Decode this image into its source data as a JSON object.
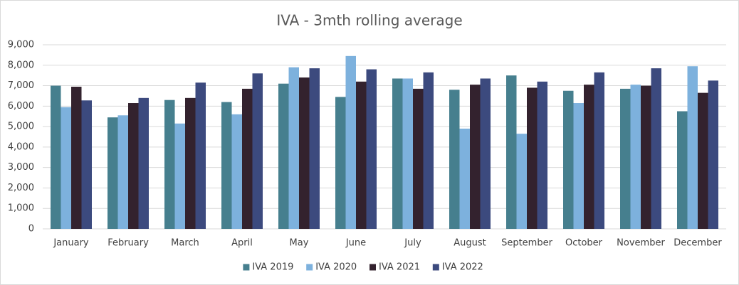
{
  "chart_data": {
    "type": "bar",
    "title": "IVA - 3mth rolling average",
    "categories": [
      "January",
      "February",
      "March",
      "April",
      "May",
      "June",
      "July",
      "August",
      "September",
      "October",
      "November",
      "December"
    ],
    "series": [
      {
        "name": "IVA 2019",
        "color": "#467f8e",
        "values": [
          7000,
          5450,
          6300,
          6200,
          7100,
          6450,
          7350,
          6800,
          7500,
          6750,
          6850,
          5750
        ]
      },
      {
        "name": "IVA 2020",
        "color": "#7db1dd",
        "values": [
          5950,
          5550,
          5150,
          5600,
          7900,
          8450,
          7350,
          4900,
          4650,
          6150,
          7050,
          7950
        ]
      },
      {
        "name": "IVA 2021",
        "color": "#33222e",
        "values": [
          6950,
          6150,
          6400,
          6850,
          7400,
          7200,
          6850,
          7050,
          6900,
          7050,
          7000,
          6650
        ]
      },
      {
        "name": "IVA 2022",
        "color": "#3c4a7e",
        "values": [
          6280,
          6400,
          7150,
          7600,
          7850,
          7800,
          7650,
          7350,
          7200,
          7650,
          7850,
          7250
        ]
      }
    ],
    "ylim": [
      0,
      9000
    ],
    "yticks": [
      0,
      {
        "value": 1000,
        "label": "1,000"
      },
      {
        "value": 2000,
        "label": "2,000"
      },
      {
        "value": 3000,
        "label": "3,000"
      },
      {
        "value": 4000,
        "label": "4,000"
      },
      {
        "value": 5000,
        "label": "5,000"
      },
      {
        "value": 6000,
        "label": "6,000"
      },
      {
        "value": 7000,
        "label": "7,000"
      },
      {
        "value": 8000,
        "label": "8,000"
      },
      {
        "value": 9000,
        "label": "9,000"
      }
    ],
    "grid": true,
    "legend": "bottom"
  }
}
